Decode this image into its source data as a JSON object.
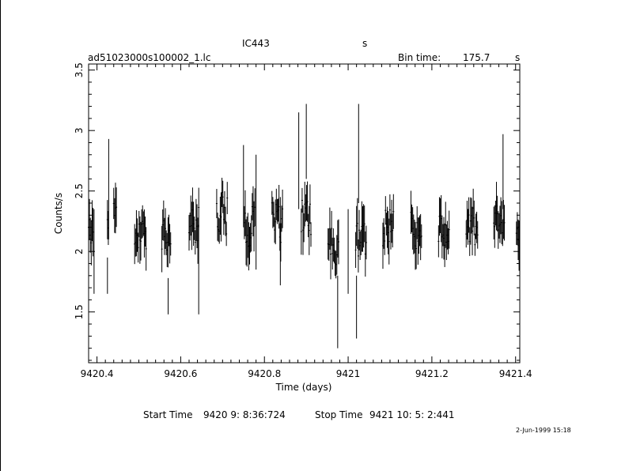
{
  "chart_data": {
    "type": "scatter",
    "title": "IC443",
    "title_right": "s",
    "file_label": "ad51023000s100002_1.lc",
    "bin_time": {
      "label": "Bin time:",
      "value": "175.7",
      "unit": "s"
    },
    "xlabel": "Time (days)",
    "ylabel": "Counts/s",
    "xlim": [
      9420.38,
      9421.41
    ],
    "ylim": [
      1.08,
      3.55
    ],
    "x_ticks": [
      "9420.4",
      "9420.6",
      "9420.8",
      "9421",
      "9421.2",
      "9421.4"
    ],
    "y_ticks": [
      "1.5",
      "2",
      "2.5",
      "3",
      "3.5"
    ],
    "start_time": {
      "label": "Start Time",
      "value": "9420  9: 8:36:724"
    },
    "stop_time": {
      "label": "Stop Time",
      "value": "9421 10: 5: 2:441"
    },
    "date_stamp": "2-Jun-1999 15:18",
    "grid": false,
    "seed": 443,
    "segments": [
      {
        "start": 9420.38,
        "end": 9420.392,
        "mean": 2.15
      },
      {
        "start": 9420.425,
        "end": 9420.428,
        "mean": 2.1
      },
      {
        "start": 9420.44,
        "end": 9420.448,
        "mean": 2.35
      },
      {
        "start": 9420.49,
        "end": 9420.518,
        "mean": 2.18
      },
      {
        "start": 9420.555,
        "end": 9420.578,
        "mean": 2.18
      },
      {
        "start": 9420.62,
        "end": 9420.645,
        "mean": 2.2
      },
      {
        "start": 9420.686,
        "end": 9420.712,
        "mean": 2.32
      },
      {
        "start": 9420.752,
        "end": 9420.778,
        "mean": 2.2
      },
      {
        "start": 9420.818,
        "end": 9420.845,
        "mean": 2.25
      },
      {
        "start": 9420.888,
        "end": 9420.912,
        "mean": 2.28
      },
      {
        "start": 9420.952,
        "end": 9420.978,
        "mean": 2.05
      },
      {
        "start": 9421.018,
        "end": 9421.044,
        "mean": 2.1
      },
      {
        "start": 9421.083,
        "end": 9421.11,
        "mean": 2.18
      },
      {
        "start": 9421.15,
        "end": 9421.176,
        "mean": 2.18
      },
      {
        "start": 9421.216,
        "end": 9421.243,
        "mean": 2.18
      },
      {
        "start": 9421.282,
        "end": 9421.31,
        "mean": 2.2
      },
      {
        "start": 9421.348,
        "end": 9421.375,
        "mean": 2.22
      },
      {
        "start": 9421.402,
        "end": 9421.41,
        "mean": 2.15
      }
    ],
    "spikes": [
      {
        "x": 9420.393,
        "low": 1.65,
        "high": 2.35
      },
      {
        "x": 9420.428,
        "low": 2.1,
        "high": 2.93
      },
      {
        "x": 9420.425,
        "low": 1.65,
        "high": 1.95
      },
      {
        "x": 9420.57,
        "low": 1.48,
        "high": 1.78
      },
      {
        "x": 9420.643,
        "low": 1.48,
        "high": 2.22
      },
      {
        "x": 9420.75,
        "low": 2.2,
        "high": 2.88
      },
      {
        "x": 9420.78,
        "low": 1.85,
        "high": 2.8
      },
      {
        "x": 9420.838,
        "low": 1.72,
        "high": 2.45
      },
      {
        "x": 9420.882,
        "low": 2.35,
        "high": 3.15
      },
      {
        "x": 9420.9,
        "low": 2.6,
        "high": 3.22
      },
      {
        "x": 9420.975,
        "low": 1.2,
        "high": 1.8
      },
      {
        "x": 9421.0,
        "low": 1.65,
        "high": 2.35
      },
      {
        "x": 9421.02,
        "low": 1.28,
        "high": 1.8
      },
      {
        "x": 9421.025,
        "low": 2.4,
        "high": 3.22
      },
      {
        "x": 9421.37,
        "low": 2.35,
        "high": 2.97
      }
    ]
  }
}
